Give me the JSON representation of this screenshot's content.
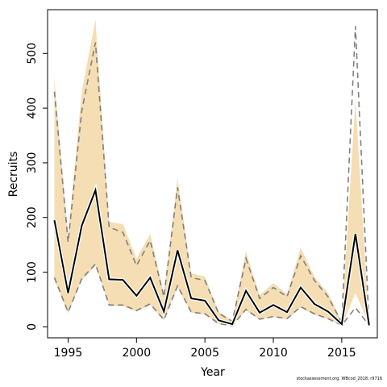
{
  "chart_data": {
    "type": "line",
    "xlabel": "Year",
    "ylabel": "Recruits",
    "xlim": [
      1993.5,
      2017.6
    ],
    "ylim": [
      -20,
      580
    ],
    "xticks": [
      1995,
      2000,
      2005,
      2010,
      2015
    ],
    "yticks": [
      0,
      100,
      200,
      300,
      400,
      500
    ],
    "x": [
      1994,
      1995,
      1996,
      1997,
      1998,
      1999,
      2000,
      2001,
      2002,
      2003,
      2004,
      2005,
      2006,
      2007,
      2008,
      2009,
      2010,
      2011,
      2012,
      2013,
      2014,
      2015,
      2016,
      2017
    ],
    "series": [
      {
        "role": "confidence-band-upper",
        "values": [
          455,
          165,
          430,
          562,
          192,
          188,
          125,
          170,
          62,
          272,
          98,
          92,
          28,
          12,
          138,
          58,
          80,
          60,
          145,
          92,
          62,
          10,
          415,
          3
        ],
        "color": "#f5deb3"
      },
      {
        "role": "confidence-band-lower",
        "values": [
          85,
          25,
          85,
          112,
          38,
          38,
          28,
          40,
          12,
          72,
          26,
          22,
          5,
          2,
          30,
          13,
          18,
          14,
          35,
          22,
          14,
          2,
          62,
          3
        ],
        "color": "#f5deb3"
      },
      {
        "role": "dashed-upper",
        "values": [
          430,
          155,
          395,
          520,
          182,
          173,
          112,
          158,
          55,
          255,
          90,
          85,
          25,
          10,
          125,
          52,
          72,
          55,
          130,
          85,
          55,
          8,
          550,
          3
        ],
        "color": "#808080"
      },
      {
        "role": "dashed-lower",
        "values": [
          90,
          27,
          88,
          115,
          40,
          40,
          30,
          42,
          13,
          75,
          27,
          24,
          6,
          2,
          32,
          14,
          19,
          15,
          37,
          24,
          15,
          3,
          35,
          3
        ],
        "color": "#808080"
      },
      {
        "role": "estimate",
        "values": [
          195,
          62,
          185,
          250,
          87,
          86,
          57,
          90,
          28,
          140,
          52,
          48,
          12,
          5,
          66,
          26,
          40,
          27,
          72,
          42,
          28,
          5,
          170,
          3
        ],
        "color": "#000000"
      }
    ],
    "grid": false
  },
  "credit": "stockassessment.org, WBcod_2018, r9716"
}
